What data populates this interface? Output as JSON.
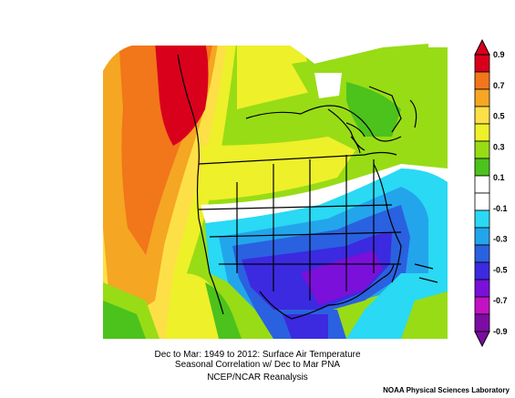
{
  "caption": {
    "line1": "Dec to Mar: 1949 to 2012: Surface Air Temperature",
    "line2": "Seasonal Correlation w/ Dec to Mar PNA",
    "line3": "NCEP/NCAR Reanalysis"
  },
  "credit": "NOAA Physical Sciences Laboratory",
  "colorbar": {
    "labels": [
      "0.9",
      "0.7",
      "0.5",
      "0.3",
      "0.1",
      "-0.1",
      "-0.3",
      "-0.5",
      "-0.7",
      "-0.9"
    ],
    "colors": [
      "#d9001c",
      "#f2761a",
      "#f5a623",
      "#fde047",
      "#eef02a",
      "#98dc16",
      "#4cc21c",
      "#ffffff",
      "#ffffff",
      "#2ad9f3",
      "#23a5ec",
      "#2a61e0",
      "#3b2ae0",
      "#7a10d9",
      "#c212c4",
      "#7d0ca3"
    ]
  }
}
